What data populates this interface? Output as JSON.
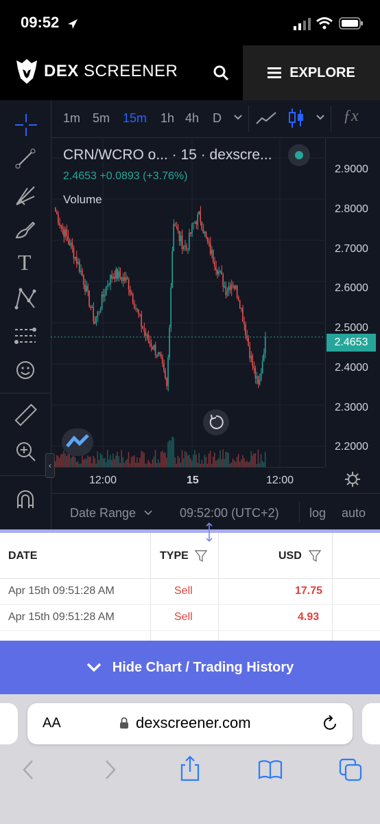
{
  "status": {
    "time": "09:52"
  },
  "header": {
    "brand_bold": "DEX",
    "brand_light": "SCREENER",
    "explore_label": "EXPLORE"
  },
  "chart": {
    "timeframes": [
      "1m",
      "5m",
      "15m",
      "1h",
      "4h",
      "D"
    ],
    "active_timeframe": "15m",
    "pair_label": "CRN/WCRO o... · 15 · dexscre...",
    "price_line": "2.4653 +0.0893 (+3.76%)",
    "volume_label": "Volume",
    "price_ticks": [
      "2.9000",
      "2.8000",
      "2.7000",
      "2.6000",
      "2.5000",
      "2.4000",
      "2.3000",
      "2.2000"
    ],
    "current_price": "2.4653",
    "time_ticks": [
      "12:00",
      "15",
      "12:00"
    ],
    "date_range_label": "Date Range",
    "clock": "09:52:00 (UTC+2)",
    "log_label": "log",
    "auto_label": "auto",
    "colors": {
      "bg": "#131722",
      "up": "#26a69a",
      "down": "#ef5350"
    }
  },
  "chart_data": {
    "type": "candlestick",
    "ylim": [
      2.15,
      2.95
    ],
    "xlabel": "",
    "ylabel": "",
    "last": 2.4653,
    "close_path": [
      2.77,
      2.73,
      2.7,
      2.66,
      2.62,
      2.56,
      2.5,
      2.55,
      2.6,
      2.62,
      2.61,
      2.6,
      2.55,
      2.5,
      2.46,
      2.44,
      2.41,
      2.34,
      2.75,
      2.7,
      2.68,
      2.74,
      2.76,
      2.7,
      2.66,
      2.62,
      2.58,
      2.6,
      2.56,
      2.48,
      2.4,
      2.34,
      2.4653
    ]
  },
  "trades": {
    "headers": {
      "date": "DATE",
      "type": "TYPE",
      "usd": "USD"
    },
    "rows": [
      {
        "date": "Apr 15th 09:51:28 AM",
        "type": "Sell",
        "usd": "17.75"
      },
      {
        "date": "Apr 15th 09:51:28 AM",
        "type": "Sell",
        "usd": "4.93"
      }
    ]
  },
  "toggle": {
    "label": "Hide Chart / Trading History"
  },
  "browser": {
    "url": "dexscreener.com",
    "aa": "AA"
  }
}
